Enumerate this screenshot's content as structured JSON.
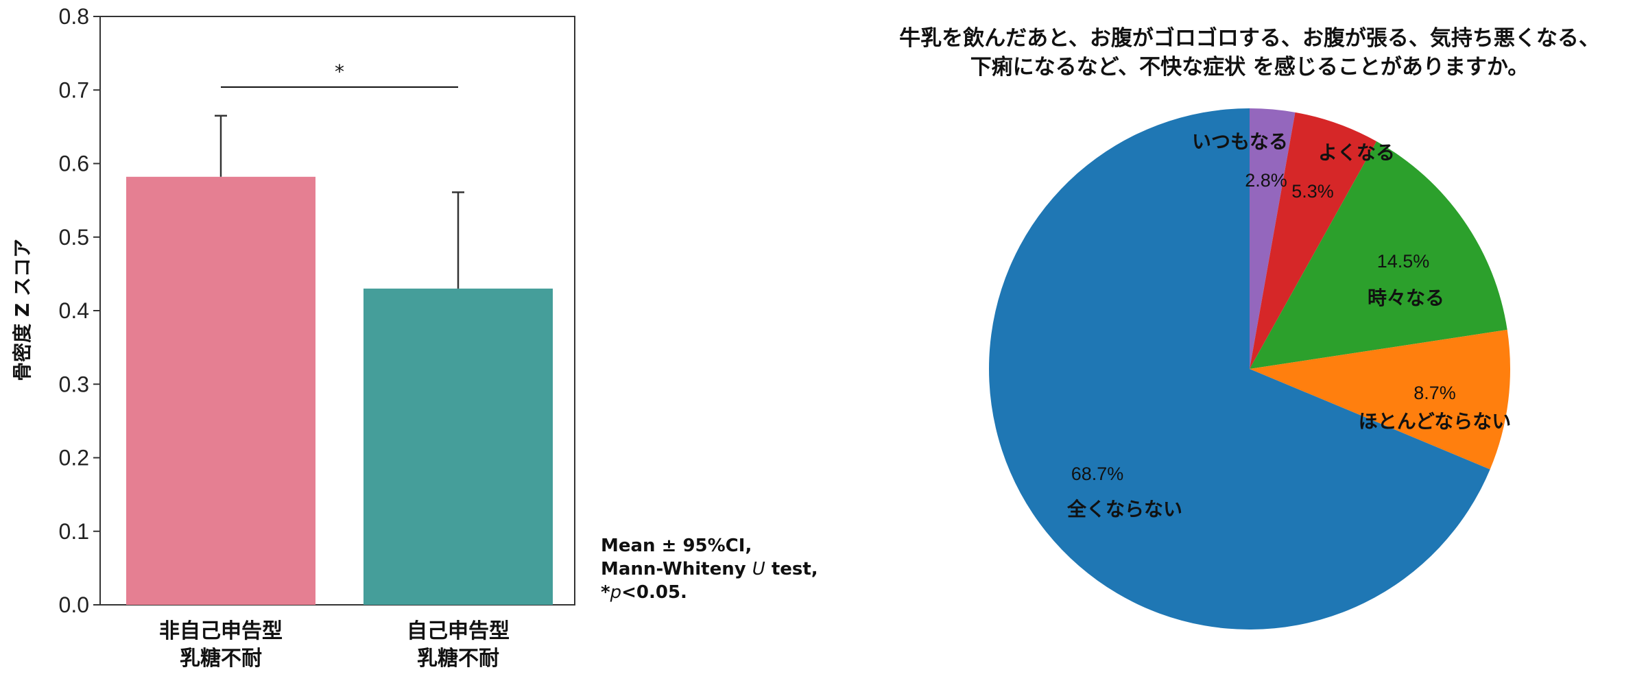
{
  "chart_data": [
    {
      "type": "bar",
      "ylabel": "骨密度 Z スコア",
      "ylim": [
        0,
        0.8
      ],
      "yticks": [
        "0.0",
        "0.1",
        "0.2",
        "0.3",
        "0.4",
        "0.5",
        "0.6",
        "0.7",
        "0.8"
      ],
      "categories": [
        [
          "非自己申告型",
          "乳糖不耐"
        ],
        [
          "自己申告型",
          "乳糖不耐"
        ]
      ],
      "values": [
        0.582,
        0.43
      ],
      "ci_upper": [
        0.665,
        0.561
      ],
      "colors": [
        "#e57f92",
        "#459e9a"
      ],
      "significance": "*",
      "note": [
        "Mean ± 95%CI,",
        "Mann-Whiteny U test,",
        "*p<0.05."
      ]
    },
    {
      "type": "pie",
      "title": [
        "牛乳を飲んだあと、お腹がゴロゴロする、お腹が張る、気持ち悪くなる、",
        "下痢になるなど、不快な症状 を感じることがありますか。"
      ],
      "slices": [
        {
          "label": "いつもなる",
          "value": 2.8,
          "pct": "2.8%",
          "color": "#9467bd"
        },
        {
          "label": "よくなる",
          "value": 5.3,
          "pct": "5.3%",
          "color": "#d62728"
        },
        {
          "label": "時々なる",
          "value": 14.5,
          "pct": "14.5%",
          "color": "#2ca02c"
        },
        {
          "label": "ほとんどならない",
          "value": 8.7,
          "pct": "8.7%",
          "color": "#ff7f0e"
        },
        {
          "label": "全くならない",
          "value": 68.7,
          "pct": "68.7%",
          "color": "#1f77b4"
        }
      ],
      "start": "top",
      "direction": "clockwise"
    }
  ]
}
